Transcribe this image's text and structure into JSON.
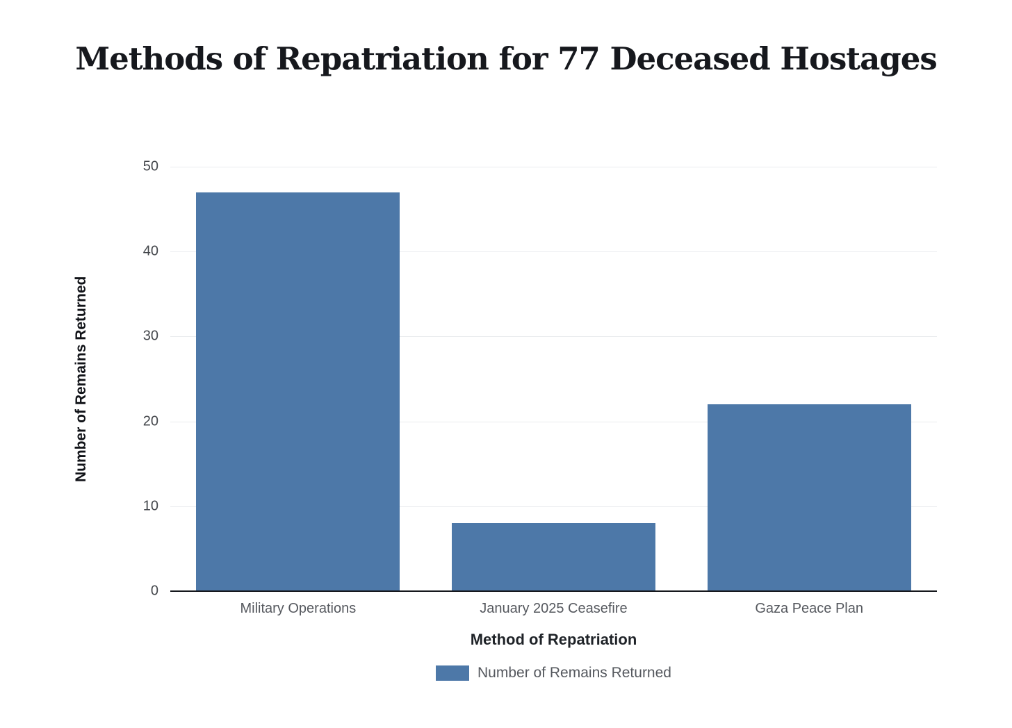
{
  "chart_data": {
    "type": "bar",
    "title": "Methods of Repatriation for 77 Deceased Hostages",
    "categories": [
      "Military Operations",
      "January 2025 Ceasefire",
      "Gaza Peace Plan"
    ],
    "values": [
      47,
      8,
      22
    ],
    "series": [
      {
        "name": "Number of Remains Returned",
        "values": [
          47,
          8,
          22
        ]
      }
    ],
    "xlabel": "Method of Repatriation",
    "ylabel": "Number of Remains Returned",
    "ylim": [
      0,
      50
    ],
    "yticks": [
      0,
      10,
      20,
      30,
      40,
      50
    ],
    "grid": "horizontal",
    "legend": {
      "position": "bottom",
      "entries": [
        "Number of Remains Returned"
      ]
    },
    "colors": {
      "bar": "#4d78a8",
      "gridline": "#e9ebee",
      "axis_line": "#16181d",
      "tick_label": "#44474c",
      "category_label": "#55585e",
      "axis_title": "#1f2328",
      "legend_text": "#55585e",
      "title": "#16181d",
      "background": "#ffffff"
    }
  }
}
